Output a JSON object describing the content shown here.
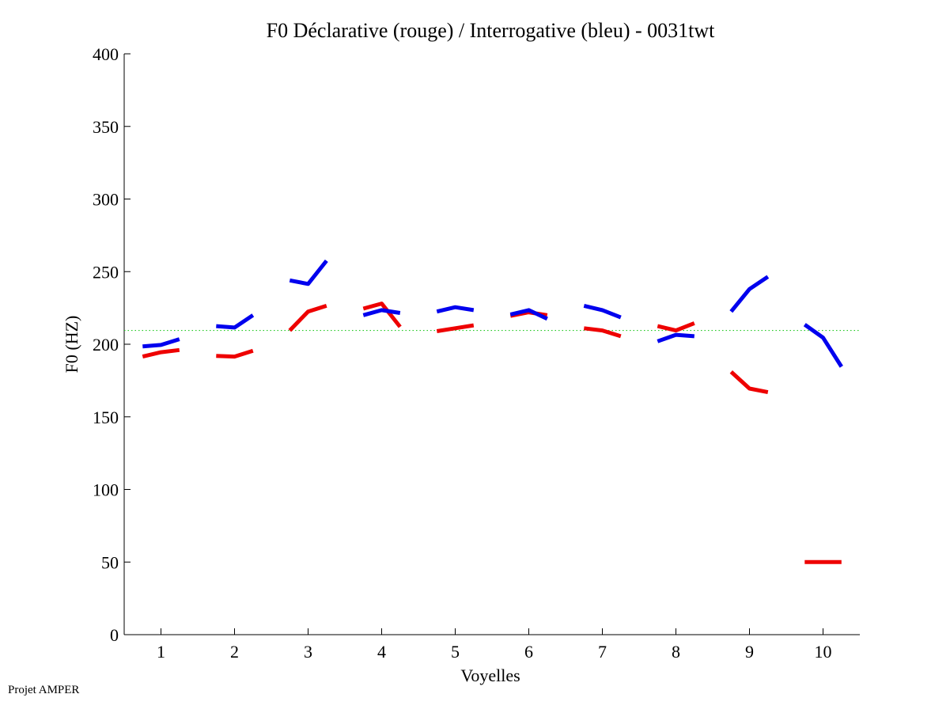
{
  "chart_data": {
    "type": "line",
    "title": "F0 Déclarative (rouge) / Interrogative (bleu) - 0031twt",
    "xlabel": "Voyelles",
    "ylabel": "F0 (HZ)",
    "xlim": [
      0.5,
      10.5
    ],
    "ylim": [
      0,
      400
    ],
    "xticks": [
      "1",
      "2",
      "3",
      "4",
      "5",
      "6",
      "7",
      "8",
      "9",
      "10"
    ],
    "yticks": [
      "0",
      "50",
      "100",
      "150",
      "200",
      "250",
      "300",
      "350",
      "400"
    ],
    "reference_line": {
      "value": 209.5,
      "color": "#22c922",
      "style": "dotted"
    },
    "series": [
      {
        "name": "Déclarative",
        "color": "#ee0000",
        "segments": [
          {
            "vowel": 1,
            "points": [
              [
                0.75,
                191.5
              ],
              [
                1.0,
                194.5
              ],
              [
                1.25,
                196.0
              ]
            ]
          },
          {
            "vowel": 2,
            "points": [
              [
                1.75,
                192.0
              ],
              [
                2.0,
                191.5
              ],
              [
                2.25,
                195.5
              ]
            ]
          },
          {
            "vowel": 3,
            "points": [
              [
                2.75,
                209.5
              ],
              [
                3.0,
                222.5
              ],
              [
                3.25,
                226.5
              ]
            ]
          },
          {
            "vowel": 4,
            "points": [
              [
                3.75,
                224.5
              ],
              [
                4.0,
                228.0
              ],
              [
                4.25,
                212.0
              ]
            ]
          },
          {
            "vowel": 5,
            "points": [
              [
                4.75,
                209.0
              ],
              [
                5.0,
                211.0
              ],
              [
                5.25,
                213.0
              ]
            ]
          },
          {
            "vowel": 6,
            "points": [
              [
                5.75,
                219.5
              ],
              [
                6.0,
                222.0
              ],
              [
                6.25,
                220.0
              ]
            ]
          },
          {
            "vowel": 7,
            "points": [
              [
                6.75,
                211.0
              ],
              [
                7.0,
                209.5
              ],
              [
                7.25,
                205.5
              ]
            ]
          },
          {
            "vowel": 8,
            "points": [
              [
                7.75,
                212.5
              ],
              [
                8.0,
                209.5
              ],
              [
                8.25,
                214.5
              ]
            ]
          },
          {
            "vowel": 9,
            "points": [
              [
                8.75,
                181.0
              ],
              [
                9.0,
                169.5
              ],
              [
                9.25,
                167.0
              ]
            ]
          },
          {
            "vowel": 10,
            "points": [
              [
                9.75,
                50.0
              ],
              [
                10.0,
                50.0
              ],
              [
                10.25,
                50.0
              ]
            ]
          }
        ]
      },
      {
        "name": "Interrogative",
        "color": "#0000ee",
        "segments": [
          {
            "vowel": 1,
            "points": [
              [
                0.75,
                198.5
              ],
              [
                1.0,
                199.5
              ],
              [
                1.25,
                203.5
              ]
            ]
          },
          {
            "vowel": 2,
            "points": [
              [
                1.75,
                212.5
              ],
              [
                2.0,
                211.5
              ],
              [
                2.25,
                220.0
              ]
            ]
          },
          {
            "vowel": 3,
            "points": [
              [
                2.75,
                244.0
              ],
              [
                3.0,
                241.5
              ],
              [
                3.25,
                257.5
              ]
            ]
          },
          {
            "vowel": 4,
            "points": [
              [
                3.75,
                220.0
              ],
              [
                4.0,
                223.5
              ],
              [
                4.25,
                221.5
              ]
            ]
          },
          {
            "vowel": 5,
            "points": [
              [
                4.75,
                222.5
              ],
              [
                5.0,
                225.5
              ],
              [
                5.25,
                223.5
              ]
            ]
          },
          {
            "vowel": 6,
            "points": [
              [
                5.75,
                220.5
              ],
              [
                6.0,
                223.5
              ],
              [
                6.25,
                217.5
              ]
            ]
          },
          {
            "vowel": 7,
            "points": [
              [
                6.75,
                226.5
              ],
              [
                7.0,
                223.5
              ],
              [
                7.25,
                218.5
              ]
            ]
          },
          {
            "vowel": 8,
            "points": [
              [
                7.75,
                202.0
              ],
              [
                8.0,
                206.5
              ],
              [
                8.25,
                205.5
              ]
            ]
          },
          {
            "vowel": 9,
            "points": [
              [
                8.75,
                222.5
              ],
              [
                9.0,
                238.0
              ],
              [
                9.25,
                246.5
              ]
            ]
          },
          {
            "vowel": 10,
            "points": [
              [
                9.75,
                213.5
              ],
              [
                10.0,
                204.5
              ],
              [
                10.25,
                184.5
              ]
            ]
          }
        ]
      }
    ]
  },
  "footer": {
    "credit": "Projet AMPER"
  }
}
